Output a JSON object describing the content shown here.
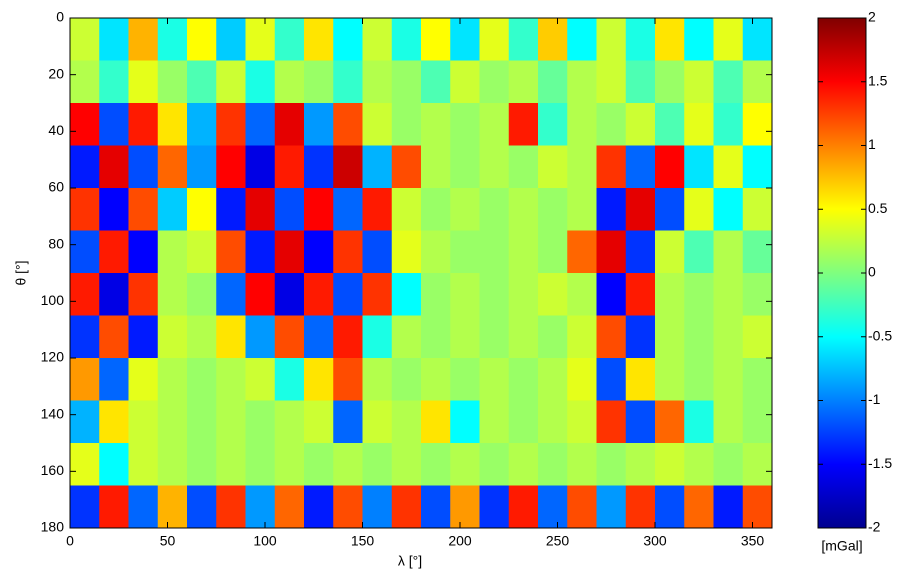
{
  "chart_data": {
    "type": "heatmap",
    "xlabel": "λ [°]",
    "ylabel": "θ [°]",
    "xlim": [
      0,
      360
    ],
    "ylim": [
      180,
      0
    ],
    "xticks": [
      0,
      50,
      100,
      150,
      200,
      250,
      300,
      350
    ],
    "yticks": [
      0,
      20,
      40,
      60,
      80,
      100,
      120,
      140,
      160,
      180
    ],
    "colormap": "jet",
    "clim": [
      -2,
      2
    ],
    "cticks": [
      -2,
      -1.5,
      -1,
      -0.5,
      0,
      0.5,
      1,
      1.5,
      2
    ],
    "clabel": "[mGal]",
    "z": [
      [
        0.3,
        -0.6,
        0.8,
        -0.4,
        0.5,
        -0.7,
        0.4,
        -0.3,
        0.6,
        -0.5,
        0.3,
        -0.4,
        0.5,
        -0.6,
        0.4,
        -0.3,
        0.7,
        -0.5,
        0.3,
        -0.4,
        0.6,
        -0.5,
        0.4,
        -0.6
      ],
      [
        0.2,
        -0.3,
        0.4,
        0.1,
        -0.2,
        0.3,
        -0.4,
        0.2,
        0.1,
        -0.3,
        0.2,
        0.1,
        -0.2,
        0.3,
        0.1,
        0.2,
        -0.1,
        0.2,
        0.3,
        -0.2,
        0.1,
        0.3,
        -0.2,
        0.2
      ],
      [
        1.5,
        -1.2,
        1.4,
        0.6,
        -0.8,
        1.3,
        -1.1,
        1.6,
        -0.9,
        1.2,
        0.3,
        0.1,
        0.2,
        0.1,
        0.2,
        1.4,
        -0.3,
        0.2,
        0.1,
        0.3,
        -0.2,
        0.4,
        -0.3,
        0.5
      ],
      [
        -1.4,
        1.6,
        -1.2,
        1.1,
        -0.9,
        1.5,
        -1.6,
        1.4,
        -1.3,
        1.7,
        -0.8,
        1.2,
        0.2,
        0.1,
        0.2,
        0.1,
        0.3,
        0.2,
        1.3,
        -1.1,
        1.5,
        -0.6,
        0.4,
        -0.5
      ],
      [
        1.3,
        -1.5,
        1.2,
        -0.7,
        0.5,
        -1.4,
        1.6,
        -1.2,
        1.5,
        -1.1,
        1.4,
        0.3,
        0.1,
        0.2,
        0.1,
        0.2,
        0.1,
        0.2,
        -1.4,
        1.6,
        -1.2,
        0.4,
        -0.5,
        0.3
      ],
      [
        -1.2,
        1.4,
        -1.5,
        0.2,
        0.3,
        1.2,
        -1.4,
        1.6,
        -1.5,
        1.3,
        -1.2,
        0.4,
        0.2,
        0.1,
        0.1,
        0.2,
        0.1,
        1.1,
        1.6,
        -1.3,
        0.3,
        -0.2,
        0.2,
        -0.1
      ],
      [
        1.4,
        -1.6,
        1.3,
        0.2,
        0.1,
        -1.1,
        1.5,
        -1.6,
        1.4,
        -1.2,
        1.3,
        -0.5,
        0.1,
        0.2,
        0.1,
        0.2,
        0.3,
        0.2,
        -1.5,
        1.4,
        0.2,
        0.1,
        0.2,
        0.1
      ],
      [
        -1.3,
        1.2,
        -1.4,
        0.3,
        0.2,
        0.6,
        -0.9,
        1.2,
        -1.1,
        1.4,
        -0.4,
        0.2,
        0.1,
        0.2,
        0.1,
        0.2,
        0.1,
        0.3,
        1.2,
        -1.3,
        0.2,
        0.1,
        0.2,
        0.3
      ],
      [
        0.9,
        -1.1,
        0.4,
        0.2,
        0.1,
        0.2,
        0.3,
        -0.4,
        0.6,
        1.2,
        0.2,
        0.1,
        0.2,
        0.1,
        0.2,
        0.1,
        0.2,
        0.4,
        -1.2,
        0.6,
        0.2,
        0.1,
        0.2,
        0.1
      ],
      [
        -0.8,
        0.6,
        0.3,
        0.2,
        0.1,
        0.2,
        0.1,
        0.2,
        0.3,
        -1.1,
        0.3,
        0.2,
        0.6,
        -0.5,
        0.2,
        0.1,
        0.2,
        0.3,
        1.3,
        -1.2,
        1.1,
        -0.4,
        0.2,
        0.1
      ],
      [
        0.4,
        -0.5,
        0.3,
        0.2,
        0.1,
        0.2,
        0.1,
        0.2,
        0.1,
        0.2,
        0.1,
        0.2,
        0.1,
        0.2,
        0.1,
        0.2,
        0.1,
        0.2,
        0.1,
        0.2,
        0.3,
        0.2,
        0.1,
        0.2
      ],
      [
        -1.3,
        1.4,
        -1.1,
        0.8,
        -1.2,
        1.3,
        -0.9,
        1.1,
        -1.4,
        1.2,
        -1.0,
        1.3,
        -1.2,
        0.9,
        -1.3,
        1.4,
        -1.1,
        1.2,
        -0.9,
        1.3,
        -1.2,
        1.1,
        -1.4,
        1.2
      ]
    ]
  }
}
